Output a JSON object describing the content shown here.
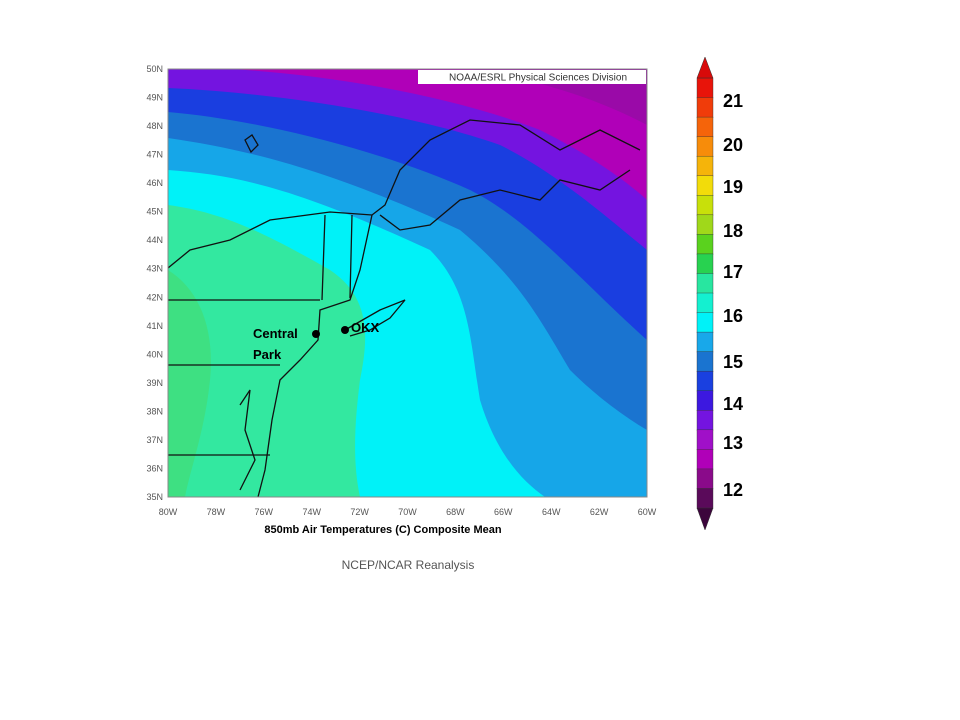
{
  "map": {
    "credit": "NOAA/ESRL Physical Sciences Division",
    "lat_labels": [
      "50N",
      "49N",
      "48N",
      "47N",
      "46N",
      "45N",
      "44N",
      "43N",
      "42N",
      "41N",
      "40N",
      "39N",
      "38N",
      "37N",
      "36N",
      "35N"
    ],
    "lon_labels": [
      "80W",
      "78W",
      "76W",
      "74W",
      "72W",
      "70W",
      "68W",
      "66W",
      "64W",
      "62W",
      "60W"
    ],
    "central_park": [
      "Central",
      "Park"
    ],
    "okx": "OKX",
    "caption": "850mb Air Temperatures (C) Composite Mean",
    "source": "NCEP/NCAR Reanalysis",
    "colorbar_labels": [
      21,
      20,
      19,
      18,
      17,
      16,
      15,
      14,
      13,
      12
    ]
  }
}
